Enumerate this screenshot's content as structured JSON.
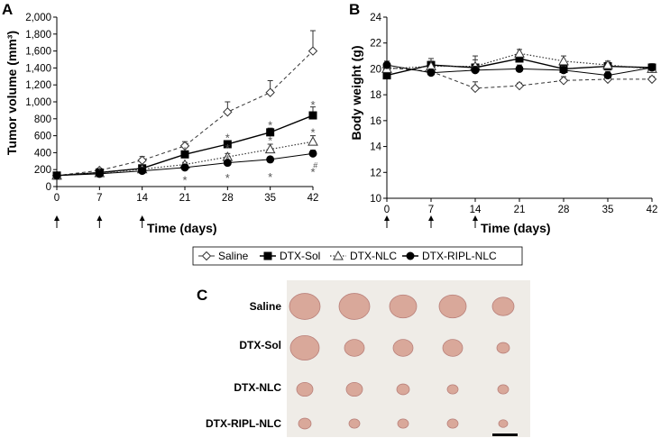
{
  "panel_labels": {
    "a": "A",
    "b": "B",
    "c": "C"
  },
  "legend": {
    "items": [
      {
        "name": "Saline",
        "marker": "diamond-open"
      },
      {
        "name": "DTX-Sol",
        "marker": "square-filled"
      },
      {
        "name": "DTX-NLC",
        "marker": "triangle-open"
      },
      {
        "name": "DTX-RIPL-NLC",
        "marker": "circle-filled"
      }
    ]
  },
  "arrows_days": [
    0,
    7,
    14
  ],
  "photo": {
    "row_labels": [
      "Saline",
      "DTX-Sol",
      "DTX-NLC",
      "DTX-RIPL-NLC"
    ],
    "background": "#efece7",
    "tumor_color": "#d9a89a"
  },
  "chart_data": [
    {
      "type": "line",
      "title": "",
      "xlabel": "Time (days)",
      "ylabel": "Tumor volume (mm³)",
      "x": [
        0,
        7,
        14,
        21,
        28,
        35,
        42
      ],
      "x_ticks": [
        "0",
        "7",
        "14",
        "21",
        "28",
        "35",
        "42"
      ],
      "ylim": [
        0,
        2000
      ],
      "y_ticks": [
        "0",
        "200",
        "400",
        "600",
        "800",
        "1,000",
        "1,200",
        "1,400",
        "1,600",
        "1,800",
        "2,000"
      ],
      "series": [
        {
          "name": "Saline",
          "values": [
            130,
            190,
            310,
            480,
            880,
            1110,
            1600
          ],
          "errors": [
            15,
            25,
            45,
            50,
            120,
            140,
            240
          ],
          "style": "dashed",
          "marker": "diamond-open"
        },
        {
          "name": "DTX-Sol",
          "values": [
            130,
            165,
            215,
            380,
            500,
            640,
            840
          ],
          "errors": [
            15,
            20,
            25,
            35,
            40,
            50,
            100
          ],
          "style": "solid",
          "marker": "square-filled"
        },
        {
          "name": "DTX-NLC",
          "values": [
            130,
            160,
            205,
            260,
            350,
            440,
            530
          ],
          "errors": [
            15,
            18,
            20,
            25,
            40,
            60,
            70
          ],
          "style": "dotted",
          "marker": "triangle-open"
        },
        {
          "name": "DTX-RIPL-NLC",
          "values": [
            130,
            150,
            185,
            225,
            280,
            320,
            390
          ],
          "errors": [
            15,
            15,
            20,
            25,
            30,
            30,
            40
          ],
          "style": "solid-thin",
          "marker": "circle-filled"
        }
      ],
      "annotations": [
        {
          "text": "*",
          "x": 21,
          "y": 460
        },
        {
          "text": "*",
          "x": 21,
          "y": 110
        },
        {
          "text": "*",
          "x": 28,
          "y": 610
        },
        {
          "text": "*",
          "x": 28,
          "y": 490
        },
        {
          "text": "*",
          "x": 28,
          "y": 360
        },
        {
          "text": "*",
          "x": 28,
          "y": 140
        },
        {
          "text": "*",
          "x": 35,
          "y": 760
        },
        {
          "text": "*",
          "x": 35,
          "y": 580
        },
        {
          "text": "*",
          "x": 35,
          "y": 150
        },
        {
          "text": "*",
          "x": 42,
          "y": 1000
        },
        {
          "text": "*",
          "x": 42,
          "y": 675
        },
        {
          "text": "*",
          "x": 42,
          "y": 205
        },
        {
          "text": "#",
          "x": 43,
          "y": 240
        }
      ]
    },
    {
      "type": "line",
      "title": "",
      "xlabel": "Time (days)",
      "ylabel": "Body weight (g)",
      "x": [
        0,
        7,
        14,
        21,
        28,
        35,
        42
      ],
      "x_ticks": [
        "0",
        "7",
        "14",
        "21",
        "28",
        "35",
        "42"
      ],
      "ylim": [
        10,
        24
      ],
      "y_ticks": [
        "10",
        "12",
        "14",
        "16",
        "18",
        "20",
        "22",
        "24"
      ],
      "series": [
        {
          "name": "Saline",
          "values": [
            20.1,
            19.8,
            18.5,
            18.7,
            19.1,
            19.2,
            19.2
          ],
          "errors": [
            0.3,
            0.3,
            0.5,
            0.2,
            0.3,
            0.2,
            0.2
          ],
          "style": "dashed",
          "marker": "diamond-open"
        },
        {
          "name": "DTX-Sol",
          "values": [
            19.5,
            20.3,
            20.1,
            20.8,
            20.0,
            20.2,
            20.1
          ],
          "errors": [
            0.3,
            0.5,
            0.6,
            0.3,
            0.3,
            0.3,
            0.3
          ],
          "style": "solid",
          "marker": "square-filled"
        },
        {
          "name": "DTX-NLC",
          "values": [
            20.0,
            20.2,
            20.2,
            21.2,
            20.6,
            20.3,
            20.0
          ],
          "errors": [
            0.3,
            0.4,
            0.8,
            0.3,
            0.4,
            0.3,
            0.3
          ],
          "style": "dotted",
          "marker": "triangle-open"
        },
        {
          "name": "DTX-RIPL-NLC",
          "values": [
            20.3,
            19.7,
            19.9,
            20.0,
            19.9,
            19.5,
            20.1
          ],
          "errors": [
            0.3,
            0.3,
            0.3,
            0.3,
            0.3,
            0.3,
            0.3
          ],
          "style": "solid-thin",
          "marker": "circle-filled"
        }
      ],
      "annotations": []
    }
  ]
}
